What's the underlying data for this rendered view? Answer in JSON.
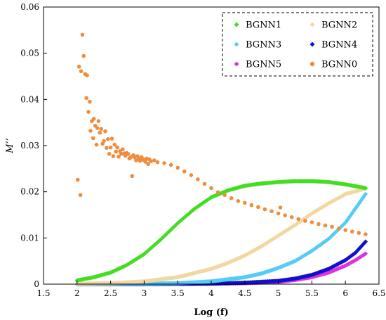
{
  "chart_data": {
    "type": "scatter",
    "title": "",
    "xlabel": "Log (f)",
    "ylabel": "M’’",
    "xlim": [
      1.5,
      6.5
    ],
    "ylim": [
      0,
      0.06
    ],
    "x_ticks": [
      "1.5",
      "2",
      "2.5",
      "3",
      "3.5",
      "4",
      "4.5",
      "5",
      "5.5",
      "6",
      "6.5"
    ],
    "y_ticks": [
      "0",
      "0.01",
      "0.02",
      "0.03",
      "0.04",
      "0.05",
      "0.06"
    ],
    "grid": false,
    "legend_position": "top-right",
    "series": [
      {
        "name": "BGNN1",
        "color": "#44dd22",
        "marker": "diamond",
        "x": [
          2.0,
          2.25,
          2.5,
          2.75,
          3.0,
          3.25,
          3.5,
          3.75,
          4.0,
          4.25,
          4.5,
          4.75,
          5.0,
          5.25,
          5.5,
          5.75,
          6.0,
          6.3
        ],
        "y": [
          0.0008,
          0.0015,
          0.0025,
          0.0042,
          0.0065,
          0.0097,
          0.0132,
          0.0163,
          0.0188,
          0.0203,
          0.0213,
          0.0218,
          0.0221,
          0.0223,
          0.0223,
          0.0221,
          0.0216,
          0.0208
        ]
      },
      {
        "name": "BGNN2",
        "color": "#f0d8a0",
        "marker": "diamond",
        "x": [
          2.0,
          2.5,
          3.0,
          3.5,
          4.0,
          4.25,
          4.5,
          4.75,
          5.0,
          5.25,
          5.5,
          5.75,
          6.0,
          6.3
        ],
        "y": [
          0.0001,
          0.0002,
          0.0006,
          0.0015,
          0.0033,
          0.0046,
          0.0062,
          0.0082,
          0.0105,
          0.0128,
          0.0153,
          0.0175,
          0.0195,
          0.0207
        ]
      },
      {
        "name": "BGNN3",
        "color": "#55ccf5",
        "marker": "diamond",
        "x": [
          2.0,
          3.0,
          3.5,
          4.0,
          4.5,
          4.75,
          5.0,
          5.25,
          5.5,
          5.75,
          6.0,
          6.3
        ],
        "y": [
          0.0,
          0.0001,
          0.0002,
          0.0006,
          0.0015,
          0.0023,
          0.0035,
          0.005,
          0.0072,
          0.0098,
          0.0133,
          0.0195
        ]
      },
      {
        "name": "BGNN4",
        "color": "#1010d0",
        "marker": "diamond",
        "x": [
          2.0,
          3.0,
          4.0,
          4.5,
          5.0,
          5.25,
          5.5,
          5.75,
          6.0,
          6.15,
          6.3
        ],
        "y": [
          0.0,
          0.0,
          0.0001,
          0.0003,
          0.0007,
          0.0012,
          0.002,
          0.0033,
          0.0052,
          0.0068,
          0.0092
        ]
      },
      {
        "name": "BGNN5",
        "color": "#dd33dd",
        "marker": "diamond",
        "x": [
          2.0,
          3.0,
          4.0,
          4.5,
          5.0,
          5.25,
          5.5,
          5.75,
          6.0,
          6.15,
          6.3
        ],
        "y": [
          0.0,
          0.0,
          0.0001,
          0.0002,
          0.0005,
          0.0009,
          0.0015,
          0.0025,
          0.004,
          0.0052,
          0.0066
        ]
      },
      {
        "name": "BGNN0",
        "color": "#f08c3c",
        "marker": "circle",
        "x": [
          2.01,
          2.03,
          2.05,
          2.06,
          2.08,
          2.1,
          2.12,
          2.14,
          2.15,
          2.17,
          2.19,
          2.2,
          2.22,
          2.24,
          2.25,
          2.27,
          2.29,
          2.3,
          2.32,
          2.34,
          2.36,
          2.38,
          2.4,
          2.42,
          2.44,
          2.46,
          2.48,
          2.5,
          2.52,
          2.54,
          2.56,
          2.58,
          2.6,
          2.62,
          2.64,
          2.66,
          2.68,
          2.7,
          2.72,
          2.74,
          2.76,
          2.78,
          2.8,
          2.82,
          2.84,
          2.86,
          2.88,
          2.9,
          2.92,
          2.94,
          2.96,
          2.98,
          3.0,
          3.02,
          3.04,
          3.06,
          3.08,
          3.1,
          3.15,
          3.2,
          3.3,
          3.4,
          3.5,
          3.6,
          3.7,
          3.8,
          3.9,
          4.0,
          4.1,
          4.2,
          4.3,
          4.4,
          4.5,
          4.6,
          4.7,
          4.8,
          4.9,
          5.0,
          5.03,
          5.1,
          5.2,
          5.3,
          5.4,
          5.5,
          5.6,
          5.7,
          5.8,
          5.9,
          6.0,
          6.1,
          6.2,
          6.3
        ],
        "y": [
          0.0226,
          0.0471,
          0.0193,
          0.0461,
          0.054,
          0.0494,
          0.0455,
          0.0403,
          0.0452,
          0.0373,
          0.0395,
          0.0332,
          0.0353,
          0.0316,
          0.0358,
          0.0343,
          0.0302,
          0.0338,
          0.0353,
          0.0328,
          0.0336,
          0.0304,
          0.031,
          0.0331,
          0.0295,
          0.0314,
          0.0282,
          0.0296,
          0.0315,
          0.0277,
          0.0302,
          0.0287,
          0.0296,
          0.0276,
          0.0288,
          0.0282,
          0.0292,
          0.0283,
          0.0278,
          0.0284,
          0.0282,
          0.0272,
          0.0275,
          0.0234,
          0.0279,
          0.0275,
          0.0268,
          0.0277,
          0.0271,
          0.0267,
          0.0275,
          0.0271,
          0.0268,
          0.0265,
          0.0272,
          0.026,
          0.027,
          0.0266,
          0.0268,
          0.0264,
          0.0262,
          0.0258,
          0.0252,
          0.0244,
          0.0236,
          0.0227,
          0.0217,
          0.0208,
          0.0199,
          0.0193,
          0.0186,
          0.018,
          0.0176,
          0.0171,
          0.0167,
          0.0162,
          0.0158,
          0.0153,
          0.0166,
          0.0149,
          0.0145,
          0.0141,
          0.0137,
          0.0134,
          0.013,
          0.0127,
          0.0124,
          0.012,
          0.0117,
          0.0114,
          0.0111,
          0.0108
        ]
      }
    ]
  }
}
